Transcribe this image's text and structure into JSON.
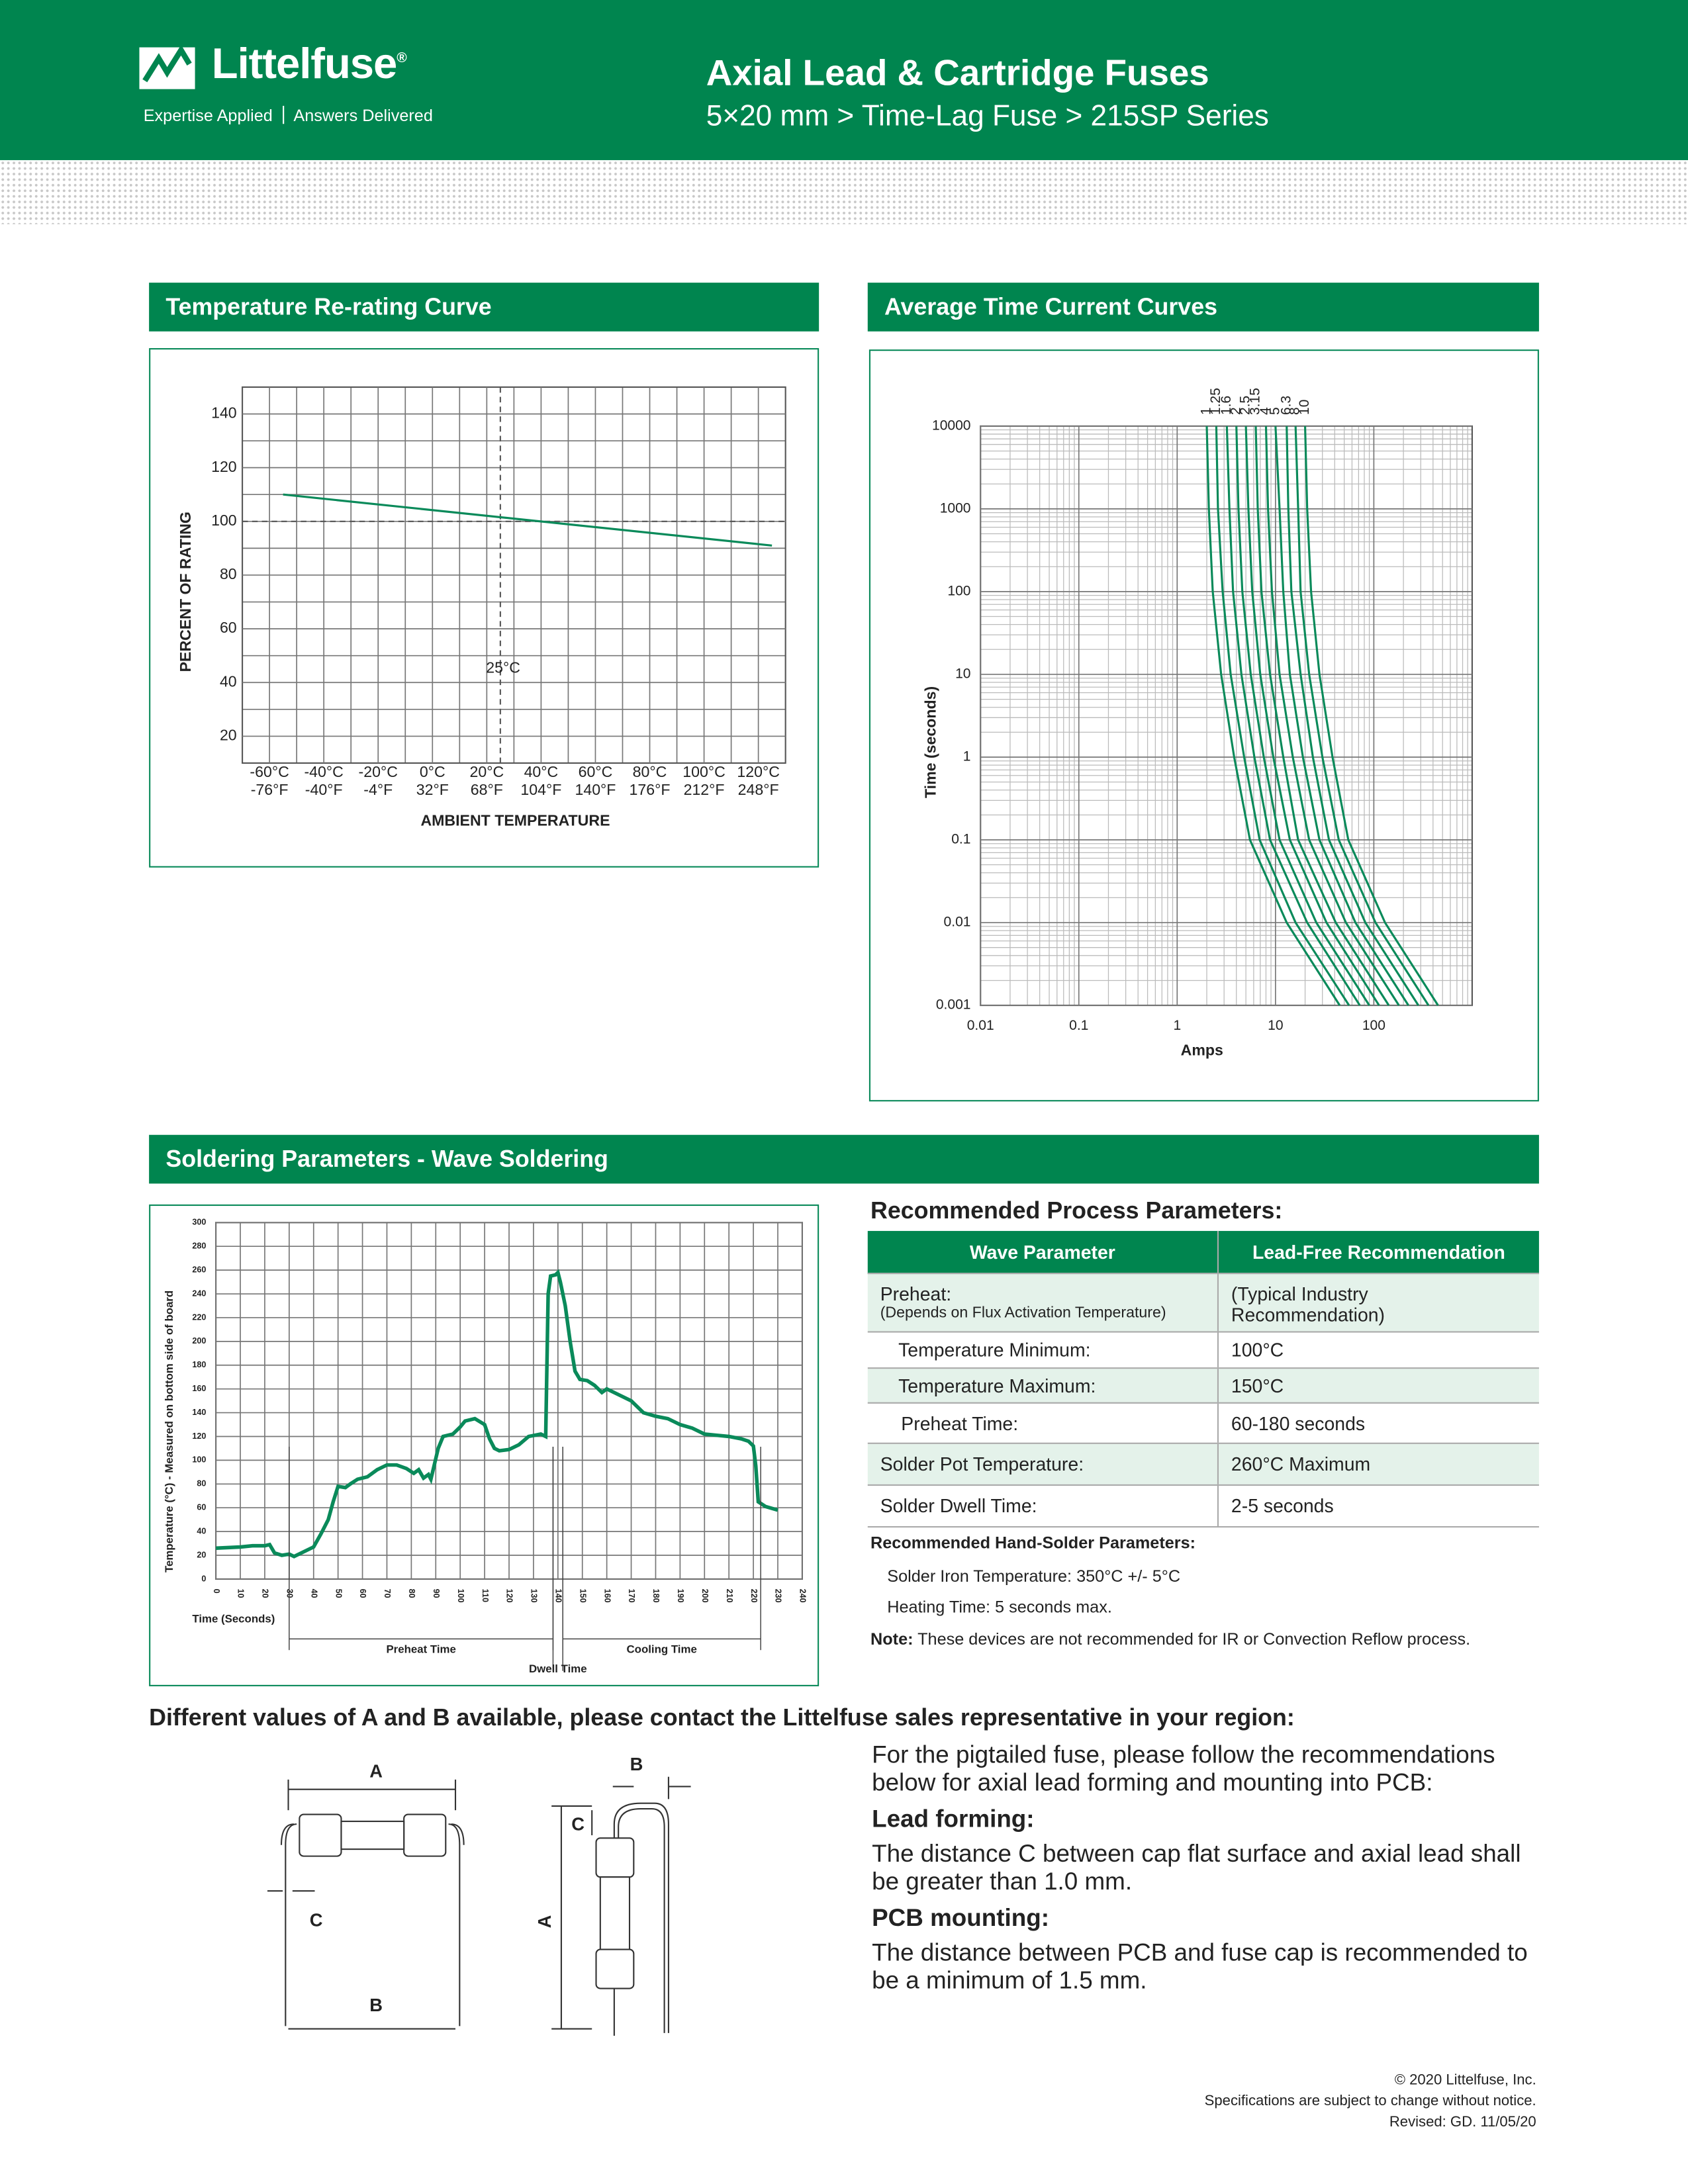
{
  "header": {
    "brand": "Littelfuse",
    "brand_mark": "®",
    "tagline": [
      "Expertise Applied",
      "Answers Delivered"
    ],
    "title": "Axial Lead & Cartridge Fuses",
    "subtitle": "5×20 mm > Time-Lag Fuse > 215SP Series"
  },
  "chart_data": [
    {
      "type": "line",
      "title": "Temperature Re-rating Curve",
      "xlabel": "AMBIENT TEMPERATURE",
      "ylabel": "PERCENT OF RATING",
      "xlim": [
        -70,
        130
      ],
      "ylim": [
        10,
        150
      ],
      "xticks": [
        {
          "value": -60,
          "label": "-60°C"
        },
        {
          "value": -40,
          "label": "-40°C"
        },
        {
          "value": -20,
          "label": "-20°C"
        },
        {
          "value": 0,
          "label": "0°C"
        },
        {
          "value": 20,
          "label": "20°C"
        },
        {
          "value": 40,
          "label": "40°C"
        },
        {
          "value": 60,
          "label": "60°C"
        },
        {
          "value": 80,
          "label": "80°C"
        },
        {
          "value": 100,
          "label": "100°C"
        },
        {
          "value": 120,
          "label": "120°C"
        }
      ],
      "xticks_alt": [
        "-76°F",
        "-40°F",
        "-4°F",
        "32°F",
        "68°F",
        "104°F",
        "140°F",
        "176°F",
        "212°F",
        "248°F"
      ],
      "yticks": [
        20,
        40,
        60,
        80,
        100,
        120,
        140
      ],
      "grid": true,
      "reference_lines": [
        {
          "axis": "y",
          "value": 100
        },
        {
          "axis": "x",
          "value": 25,
          "label": "25°C"
        }
      ],
      "series": [
        {
          "color": "#0a8a5a",
          "x": [
            -55,
            125
          ],
          "values": [
            110,
            91
          ]
        }
      ]
    },
    {
      "type": "line",
      "title": "Average Time Current Curves",
      "xlabel": "Amps",
      "ylabel": "Time (seconds)",
      "log_scale": true,
      "xlim": [
        0.01,
        1000
      ],
      "ylim": [
        0.001,
        10000
      ],
      "xticks": [
        0.01,
        0.1,
        1,
        10,
        100
      ],
      "yticks": [
        0.001,
        0.01,
        0.1,
        1,
        10,
        100,
        1000,
        10000
      ],
      "grid": true,
      "series": [
        {
          "name": "1",
          "color": "#0a8a5a",
          "x": [
            2,
            2.1,
            2.3,
            2.8,
            3.8,
            5.5,
            13,
            45
          ],
          "values": [
            10000,
            1000,
            100,
            10,
            1,
            0.1,
            0.01,
            0.001
          ]
        },
        {
          "name": "1.25",
          "color": "#0a8a5a",
          "x": [
            2.5,
            2.6,
            2.9,
            3.5,
            4.8,
            6.9,
            16,
            56
          ],
          "values": [
            10000,
            1000,
            100,
            10,
            1,
            0.1,
            0.01,
            0.001
          ]
        },
        {
          "name": "1.6",
          "color": "#0a8a5a",
          "x": [
            3.2,
            3.4,
            3.7,
            4.5,
            6.1,
            8.8,
            21,
            72
          ],
          "values": [
            10000,
            1000,
            100,
            10,
            1,
            0.1,
            0.01,
            0.001
          ]
        },
        {
          "name": "2",
          "color": "#0a8a5a",
          "x": [
            4,
            4.2,
            4.6,
            5.6,
            7.6,
            11,
            26,
            90
          ],
          "values": [
            10000,
            1000,
            100,
            10,
            1,
            0.1,
            0.01,
            0.001
          ]
        },
        {
          "name": "2.5",
          "color": "#0a8a5a",
          "x": [
            5,
            5.3,
            5.8,
            7,
            9.5,
            14,
            33,
            113
          ],
          "values": [
            10000,
            1000,
            100,
            10,
            1,
            0.1,
            0.01,
            0.001
          ]
        },
        {
          "name": "3.15",
          "color": "#0a8a5a",
          "x": [
            6.3,
            6.6,
            7.2,
            8.8,
            12,
            17,
            41,
            142
          ],
          "values": [
            10000,
            1000,
            100,
            10,
            1,
            0.1,
            0.01,
            0.001
          ]
        },
        {
          "name": "4",
          "color": "#0a8a5a",
          "x": [
            8,
            8.4,
            9.2,
            11,
            15,
            22,
            52,
            180
          ],
          "values": [
            10000,
            1000,
            100,
            10,
            1,
            0.1,
            0.01,
            0.001
          ]
        },
        {
          "name": "5",
          "color": "#0a8a5a",
          "x": [
            10,
            11,
            12,
            14,
            19,
            28,
            65,
            225
          ],
          "values": [
            10000,
            1000,
            100,
            10,
            1,
            0.1,
            0.01,
            0.001
          ]
        },
        {
          "name": "6.3",
          "color": "#0a8a5a",
          "x": [
            13,
            13.5,
            14.5,
            18,
            24,
            35,
            82,
            284
          ],
          "values": [
            10000,
            1000,
            100,
            10,
            1,
            0.1,
            0.01,
            0.001
          ]
        },
        {
          "name": "8",
          "color": "#0a8a5a",
          "x": [
            16,
            17,
            18,
            22,
            30,
            44,
            104,
            360
          ],
          "values": [
            10000,
            1000,
            100,
            10,
            1,
            0.1,
            0.01,
            0.001
          ]
        },
        {
          "name": "10",
          "color": "#0a8a5a",
          "x": [
            20,
            21,
            23,
            28,
            38,
            55,
            130,
            450
          ],
          "values": [
            10000,
            1000,
            100,
            10,
            1,
            0.1,
            0.01,
            0.001
          ]
        }
      ]
    },
    {
      "type": "line",
      "title": "Soldering Parameters - Wave Soldering",
      "xlabel": "Time (Seconds)",
      "ylabel": "Temperature (°C) - Measured on bottom side of board",
      "xlim": [
        0,
        240
      ],
      "ylim": [
        0,
        300
      ],
      "xticks": [
        0,
        10,
        20,
        30,
        40,
        50,
        60,
        70,
        80,
        90,
        100,
        110,
        120,
        130,
        140,
        150,
        160,
        170,
        180,
        190,
        200,
        210,
        220,
        230,
        240
      ],
      "yticks": [
        0,
        20,
        40,
        60,
        80,
        100,
        120,
        140,
        160,
        180,
        200,
        220,
        240,
        260,
        280,
        300
      ],
      "grid": true,
      "series": [
        {
          "color": "#0a8a5a",
          "x": [
            0,
            10,
            15,
            20,
            22,
            24,
            27,
            30,
            32,
            35,
            40,
            43,
            46,
            48,
            50,
            53,
            55,
            58,
            62,
            66,
            70,
            74,
            78,
            81,
            83,
            85,
            87,
            88,
            91,
            93,
            97,
            100,
            102,
            106,
            110,
            112,
            114,
            116,
            120,
            124,
            128,
            133,
            135,
            136,
            137,
            139,
            140,
            141,
            143,
            145,
            147,
            149,
            152,
            155,
            158,
            160,
            163,
            166,
            170,
            175,
            180,
            185,
            190,
            195,
            200,
            205,
            210,
            215,
            218,
            220,
            221,
            222,
            225,
            230
          ],
          "values": [
            26,
            27,
            28,
            28,
            29,
            22,
            20,
            21,
            19,
            22,
            27,
            38,
            50,
            65,
            78,
            77,
            80,
            84,
            86,
            92,
            96,
            96,
            93,
            89,
            92,
            85,
            88,
            84,
            110,
            120,
            122,
            128,
            133,
            135,
            130,
            118,
            110,
            108,
            109,
            113,
            120,
            122,
            120,
            240,
            255,
            256,
            258,
            250,
            230,
            200,
            175,
            168,
            167,
            163,
            157,
            160,
            157,
            154,
            150,
            140,
            137,
            135,
            130,
            127,
            122,
            121,
            120,
            118,
            116,
            112,
            95,
            65,
            61,
            58
          ]
        }
      ],
      "phases": [
        {
          "label": "Preheat Time",
          "start": 30,
          "end": 138
        },
        {
          "label": "Dwell Time",
          "start": 138,
          "end": 142
        },
        {
          "label": "Cooling Time",
          "start": 142,
          "end": 223
        }
      ]
    }
  ],
  "process_parameters": {
    "title": "Recommended Process Parameters:",
    "header": [
      "Wave Parameter",
      "Lead-Free Recommendation"
    ],
    "rows": [
      {
        "parameter": "Preheat:",
        "note": "(Depends on Flux Activation Temperature)",
        "value": "(Typical Industry Recommendation)"
      },
      {
        "parameter": "Temperature Minimum:",
        "value": "100°C"
      },
      {
        "parameter": "Temperature Maximum:",
        "value": "150°C"
      },
      {
        "parameter": "Preheat Time:",
        "value": "60-180 seconds"
      },
      {
        "parameter": "Solder Pot Temperature:",
        "value": "260°C Maximum"
      },
      {
        "parameter": "Solder Dwell Time:",
        "value": "2-5 seconds"
      }
    ]
  },
  "hand_solder": {
    "title": "Recommended Hand-Solder Parameters:",
    "items": [
      "Solder Iron Temperature: 350°C +/- 5°C",
      "Heating Time: 5 seconds max."
    ]
  },
  "note": {
    "label": "Note:",
    "text": "These devices are not recommended for IR or Convection Reflow process."
  },
  "lead_info": {
    "heading": "Different values of A and B available, please contact the Littelfuse sales representative in your region:",
    "intro": "For the pigtailed fuse, please follow the recommendations below for axial lead forming and mounting into PCB:",
    "sections": [
      {
        "title": "Lead forming:",
        "text": "The distance C between cap flat surface and axial lead shall be greater than 1.0 mm."
      },
      {
        "title": "PCB mounting:",
        "text": "The distance between PCB and fuse cap is recommended to be a minimum of 1.5 mm."
      }
    ]
  },
  "diagram": {
    "labels": [
      "A",
      "B",
      "C"
    ]
  },
  "footer": {
    "copyright": "© 2020 Littelfuse, Inc.",
    "disclaimer": "Specifications are subject to change without notice.",
    "revised": "Revised: GD. 11/05/20"
  }
}
